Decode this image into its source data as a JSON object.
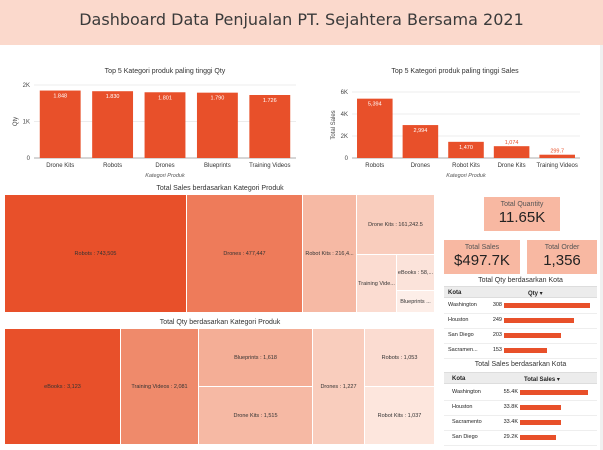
{
  "header": {
    "title": "Dashboard Data Penjualan PT. Sejahtera Bersama 2021"
  },
  "colors": {
    "accent": "#e8502a",
    "header_bg": "#fbd9cc",
    "kpi_bg": "#f8b8a2"
  },
  "chart_data": [
    {
      "type": "bar",
      "title": "Top 5 Kategori produk paling tinggi Qty",
      "xlabel": "Kategori Produk",
      "ylabel": "Qty",
      "categories": [
        "Drone Kits",
        "Robots",
        "Drones",
        "Blueprints",
        "Training Videos"
      ],
      "values": [
        1848,
        1830,
        1801,
        1790,
        1726
      ],
      "value_labels": [
        "1.848",
        "1.830",
        "1.801",
        "1.790",
        "1.726"
      ],
      "ylim": [
        0,
        2000
      ],
      "yticks": [
        0,
        1000,
        2000
      ],
      "ytick_labels": [
        "0",
        "1K",
        "2K"
      ]
    },
    {
      "type": "bar",
      "title": "Top 5 Kategori produk paling tinggi Sales",
      "xlabel": "Kategori Produk",
      "ylabel": "Total Sales",
      "categories": [
        "Robots",
        "Drones",
        "Robot Kits",
        "Drone Kits",
        "Training Videos"
      ],
      "values": [
        5394,
        2994,
        1470,
        1074,
        299.7
      ],
      "value_labels": [
        "5,394",
        "2,994",
        "1,470",
        "1,074",
        "299.7"
      ],
      "ylim": [
        0,
        6000
      ],
      "yticks": [
        0,
        2000,
        4000,
        6000
      ],
      "ytick_labels": [
        "0",
        "2K",
        "4K",
        "6K"
      ]
    }
  ],
  "treemap_sales": {
    "title": "Total Sales berdasarkan Kategori Produk",
    "cells": [
      {
        "label": "Robots : 743,505",
        "value": 743505
      },
      {
        "label": "Drones : 477,447",
        "value": 477447
      },
      {
        "label": "Robot Kits : 216,4...",
        "value": 216400
      },
      {
        "label": "Drone Kits : 161,242.5",
        "value": 161242.5
      },
      {
        "label": "Training Vide...",
        "value": 0
      },
      {
        "label": "eBooks : 58,...",
        "value": 58000
      },
      {
        "label": "Blueprints ...",
        "value": 0
      }
    ]
  },
  "treemap_qty": {
    "title": "Total Qty berdasarkan Kategori Produk",
    "cells": [
      {
        "label": "eBooks : 3,123",
        "value": 3123
      },
      {
        "label": "Training Videos : 2,081",
        "value": 2081
      },
      {
        "label": "Blueprints : 1,618",
        "value": 1618
      },
      {
        "label": "Drone Kits : 1,515",
        "value": 1515
      },
      {
        "label": "Drones : 1,227",
        "value": 1227
      },
      {
        "label": "Robots : 1,053",
        "value": 1053
      },
      {
        "label": "Robot Kits : 1,037",
        "value": 1037
      }
    ]
  },
  "kpis": {
    "total_quantity": {
      "label": "Total Quantity",
      "value": "11.65K"
    },
    "total_sales": {
      "label": "Total Sales",
      "value": "$497.7K"
    },
    "total_order": {
      "label": "Total Order",
      "value": "1,356"
    }
  },
  "table_qty": {
    "title": "Total Qty berdasarkan Kota",
    "col_city": "Kota",
    "col_value": "Qty ▾",
    "rows": [
      {
        "city": "Washington",
        "value": "308",
        "n": 308
      },
      {
        "city": "Houston",
        "value": "249",
        "n": 249
      },
      {
        "city": "San Diego",
        "value": "203",
        "n": 203
      },
      {
        "city": "Sacramen...",
        "value": "153",
        "n": 153
      }
    ]
  },
  "table_sales": {
    "title": "Total Sales berdasarkan Kota",
    "col_city": "Kota",
    "col_value": "Total Sales ▾",
    "rows": [
      {
        "city": "Washington",
        "value": "55.4K",
        "n": 55.4
      },
      {
        "city": "Houston",
        "value": "33.8K",
        "n": 33.8
      },
      {
        "city": "Sacramento",
        "value": "33.4K",
        "n": 33.4
      },
      {
        "city": "San Diego",
        "value": "29.2K",
        "n": 29.2
      }
    ]
  }
}
